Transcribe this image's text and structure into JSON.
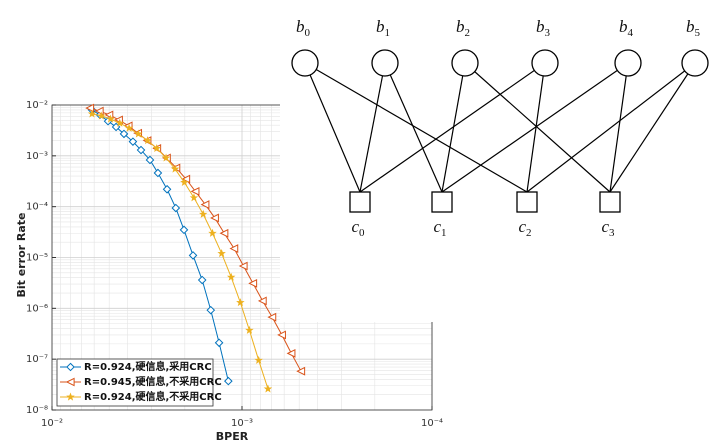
{
  "chart_data": {
    "type": "line",
    "x_label": "BPER",
    "y_label": "Bit error Rate",
    "xlog": true,
    "ylog": true,
    "grid": true,
    "minor_grid": true,
    "legend": "lower left",
    "xlim": [
      0.01,
      0.0001
    ],
    "xticks": [
      {
        "value": 0.01,
        "label": "10⁻²"
      },
      {
        "value": 0.001,
        "label": "10⁻³"
      },
      {
        "value": 0.0001,
        "label": "10⁻⁴"
      }
    ],
    "ylim": [
      1e-08,
      0.01
    ],
    "yticks": [
      {
        "value": 1e-08,
        "label": "10⁻⁸"
      },
      {
        "value": 1e-07,
        "label": "10⁻⁷"
      },
      {
        "value": 1e-06,
        "label": "10⁻⁶"
      },
      {
        "value": 1e-05,
        "label": "10⁻⁵"
      },
      {
        "value": 0.0001,
        "label": "10⁻⁴"
      },
      {
        "value": 0.001,
        "label": "10⁻³"
      },
      {
        "value": 0.01,
        "label": "10⁻²"
      }
    ],
    "series": [
      {
        "name": "R=0.924,硬信息,采用CRC",
        "color": "#0072BD",
        "marker": "diamond",
        "x": [
          0.00616,
          0.00559,
          0.00507,
          0.0046,
          0.00418,
          0.00375,
          0.0034,
          0.00305,
          0.00277,
          0.00248,
          0.00223,
          0.00202,
          0.00181,
          0.00162,
          0.00146,
          0.00132,
          0.00118
        ],
        "values": [
          0.008,
          0.0064,
          0.0048,
          0.0037,
          0.0027,
          0.0019,
          0.0013,
          0.00083,
          0.00046,
          0.00022,
          9.4e-05,
          3.5e-05,
          1.1e-05,
          3.6e-06,
          9.2e-07,
          2.1e-07,
          3.7e-08
        ]
      },
      {
        "name": "R=0.945,硬信息,不采用CRC",
        "color": "#D95319",
        "marker": "triangle-left",
        "x": [
          0.00631,
          0.00562,
          0.005,
          0.00445,
          0.00396,
          0.00353,
          0.00315,
          0.0028,
          0.00249,
          0.00222,
          0.00197,
          0.00176,
          0.00156,
          0.00139,
          0.00124,
          0.0011,
          0.000982,
          0.000875,
          0.000779,
          0.000694,
          0.000617,
          0.00055,
          0.000489
        ],
        "values": [
          0.0087,
          0.0076,
          0.0064,
          0.0051,
          0.0039,
          0.0028,
          0.002,
          0.0014,
          0.00091,
          0.00058,
          0.00035,
          0.0002,
          0.00011,
          6e-05,
          3e-05,
          1.5e-05,
          6.8e-06,
          3.1e-06,
          1.4e-06,
          6.7e-07,
          3e-07,
          1.3e-07,
          5.8e-08
        ]
      },
      {
        "name": "R=0.924,硬信息,不采用CRC",
        "color": "#EDB120",
        "marker": "star",
        "x": [
          0.00616,
          0.0055,
          0.00492,
          0.0044,
          0.00393,
          0.00351,
          0.00314,
          0.00281,
          0.00251,
          0.00225,
          0.00201,
          0.00179,
          0.0016,
          0.00143,
          0.00128,
          0.00114,
          0.00102,
          0.000914,
          0.000817,
          0.00073
        ],
        "values": [
          0.0067,
          0.0061,
          0.0053,
          0.0044,
          0.0035,
          0.0027,
          0.002,
          0.0014,
          0.00091,
          0.00055,
          0.0003,
          0.00015,
          7.1e-05,
          3e-05,
          1.2e-05,
          4.1e-06,
          1.3e-06,
          3.7e-07,
          9.5e-08,
          2.6e-08
        ]
      }
    ]
  },
  "diagram": {
    "bit_nodes": [
      {
        "label": "b",
        "sub": "0"
      },
      {
        "label": "b",
        "sub": "1"
      },
      {
        "label": "b",
        "sub": "2"
      },
      {
        "label": "b",
        "sub": "3"
      },
      {
        "label": "b",
        "sub": "4"
      },
      {
        "label": "b",
        "sub": "5"
      }
    ],
    "check_nodes": [
      {
        "label": "c",
        "sub": "0"
      },
      {
        "label": "c",
        "sub": "1"
      },
      {
        "label": "c",
        "sub": "2"
      },
      {
        "label": "c",
        "sub": "3"
      }
    ]
  }
}
